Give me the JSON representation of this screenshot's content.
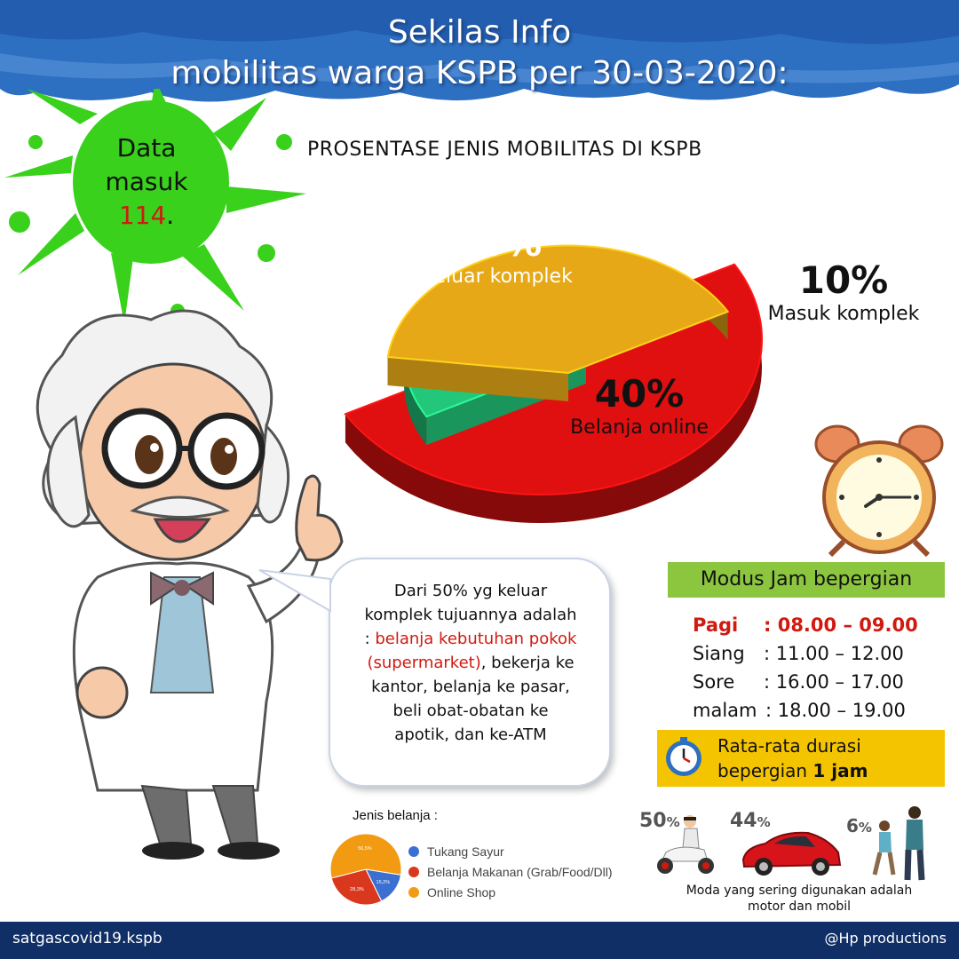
{
  "header": {
    "title_line1": "Sekilas Info",
    "title_line2": "mobilitas warga KSPB per 30-03-2020:"
  },
  "data_masuk": {
    "line1": "Data",
    "line2": "masuk",
    "count": "114",
    "suffix": "."
  },
  "chart_data": [
    {
      "type": "pie",
      "title": "PROSENTASE JENIS MOBILITAS DI KSPB",
      "slices": [
        {
          "label": "Keluar komplek",
          "value": 50,
          "display": "50%",
          "color": "#e01010"
        },
        {
          "label": "Masuk komplek",
          "value": 10,
          "display": "10%",
          "color": "#22c77a"
        },
        {
          "label": "Belanja online",
          "value": 40,
          "display": "40%",
          "color": "#e6a817"
        }
      ]
    },
    {
      "type": "pie",
      "title": "Jenis belanja :",
      "slices": [
        {
          "label": "Tukang Sayur",
          "value": 15.2,
          "display": "15,2%",
          "color": "#3b6fd1"
        },
        {
          "label": "Belanja Makanan (Grab/Food/Dll)",
          "value": 28.3,
          "display": "28,3%",
          "color": "#d9381e"
        },
        {
          "label": "Online Shop",
          "value": 56.5,
          "display": "56,5%",
          "color": "#f29b12"
        }
      ]
    }
  ],
  "bubble": {
    "line1": "Dari 50% yg keluar",
    "line2": "komplek tujuannya adalah",
    "line3_prefix": ": ",
    "line3_highlight": "belanja kebutuhan pokok",
    "line4_highlight": "(supermarket)",
    "line4_rest": ", bekerja ke",
    "line5": "kantor, belanja ke pasar,",
    "line6": "beli obat-obatan ke",
    "line7": "apotik, dan  ke-ATM"
  },
  "modus": {
    "title": "Modus Jam bepergian",
    "rows": [
      {
        "label": "Pagi",
        "time": ": 08.00 – 09.00"
      },
      {
        "label": "Siang",
        "time": ": 11.00 – 12.00"
      },
      {
        "label": "Sore",
        "time": ": 16.00 – 17.00"
      },
      {
        "label": "malam",
        "time": ": 18.00 – 19.00"
      }
    ]
  },
  "durasi": {
    "line1": "Rata-rata durasi",
    "line2_prefix": "bepergian ",
    "line2_bold": "1 jam"
  },
  "moda": {
    "items": [
      {
        "pct": "50",
        "icon": "scooter-rider-icon"
      },
      {
        "pct": "44",
        "icon": "car-icon"
      },
      {
        "pct": "6",
        "icon": "walking-people-icon"
      }
    ],
    "percent_sign": "%",
    "caption_line1": "Moda yang sering digunakan adalah",
    "caption_line2": "motor dan mobil"
  },
  "footer": {
    "left": "satgascovid19.kspb",
    "right": "@Hp productions"
  },
  "colors": {
    "banner_blue": "#2d6fc0",
    "splat_green": "#39d11c",
    "highlight_red": "#d01a10",
    "modus_green": "#8cc63f",
    "durasi_yellow": "#f5c400",
    "footer_navy": "#0f2f66"
  }
}
